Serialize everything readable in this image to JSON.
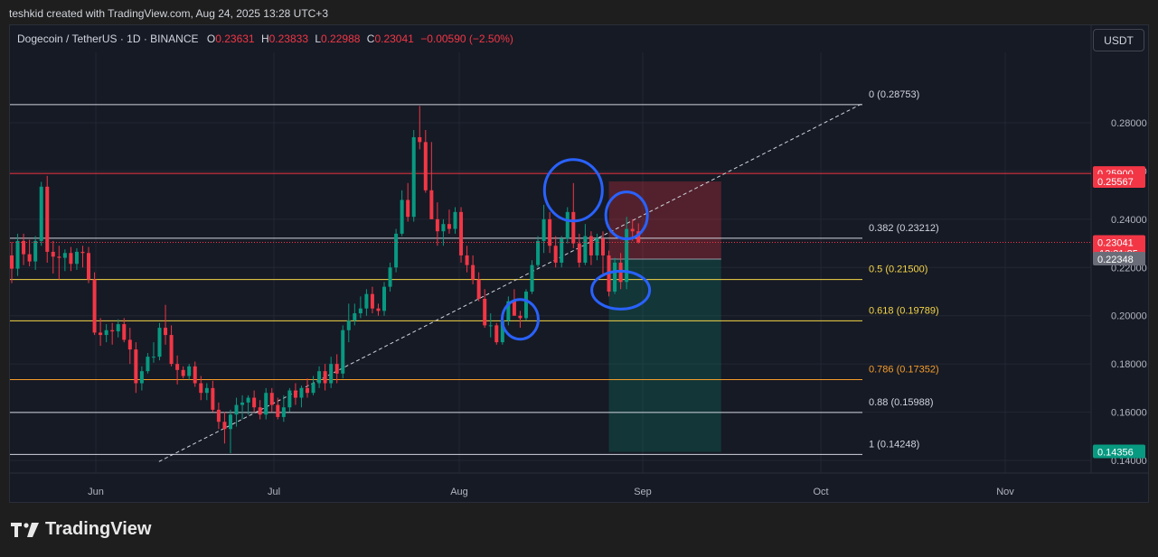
{
  "header": {
    "credit": "teshkid created with TradingView.com, Aug 24, 2025 13:28 UTC+3"
  },
  "legend": {
    "symbol": "Dogecoin / TetherUS · 1D · BINANCE",
    "o_label": "O",
    "o_value": "0.23631",
    "h_label": "H",
    "h_value": "0.23833",
    "l_label": "L",
    "l_value": "0.22988",
    "c_label": "C",
    "c_value": "0.23041",
    "change": "−0.00590 (−2.50%)"
  },
  "currency_button": "USDT",
  "brand": {
    "name": "TradingView"
  },
  "colors": {
    "up": "#089981",
    "down": "#f23645",
    "background": "#161a25",
    "annotation": "#2962ff"
  },
  "chart_data": {
    "type": "candlestick",
    "symbol": "Dogecoin / TetherUS",
    "interval": "1D",
    "exchange": "BINANCE",
    "x_ticks": [
      "Jun",
      "Jul",
      "Aug",
      "Sep",
      "Oct",
      "Nov"
    ],
    "y_ticks": [
      "0.28000",
      "0.26000",
      "0.24000",
      "0.22000",
      "0.20000",
      "0.18000",
      "0.16000",
      "0.14000"
    ],
    "ylim": [
      0.126,
      0.298
    ],
    "first_candle_date": "2025-05-19",
    "candles": [
      [
        0.225,
        0.2305,
        0.2135,
        0.2195
      ],
      [
        0.2195,
        0.234,
        0.2165,
        0.231
      ],
      [
        0.231,
        0.234,
        0.221,
        0.2255
      ],
      [
        0.2255,
        0.2315,
        0.2205,
        0.2225
      ],
      [
        0.2225,
        0.233,
        0.219,
        0.231
      ],
      [
        0.231,
        0.2555,
        0.229,
        0.2535
      ],
      [
        0.2535,
        0.258,
        0.222,
        0.2265
      ],
      [
        0.2265,
        0.231,
        0.2175,
        0.2245
      ],
      [
        0.2245,
        0.229,
        0.215,
        0.224
      ],
      [
        0.224,
        0.2275,
        0.2185,
        0.226
      ],
      [
        0.226,
        0.2285,
        0.2185,
        0.2215
      ],
      [
        0.2215,
        0.228,
        0.219,
        0.2265
      ],
      [
        0.2265,
        0.229,
        0.22,
        0.226
      ],
      [
        0.226,
        0.2285,
        0.2135,
        0.215
      ],
      [
        0.215,
        0.218,
        0.192,
        0.193
      ],
      [
        0.193,
        0.199,
        0.1875,
        0.192
      ],
      [
        0.192,
        0.1965,
        0.189,
        0.194
      ],
      [
        0.194,
        0.197,
        0.188,
        0.1935
      ],
      [
        0.1935,
        0.1985,
        0.191,
        0.1965
      ],
      [
        0.1965,
        0.199,
        0.189,
        0.19
      ],
      [
        0.19,
        0.195,
        0.18,
        0.186
      ],
      [
        0.186,
        0.189,
        0.168,
        0.172
      ],
      [
        0.172,
        0.179,
        0.169,
        0.177
      ],
      [
        0.177,
        0.1845,
        0.176,
        0.183
      ],
      [
        0.183,
        0.189,
        0.1805,
        0.183
      ],
      [
        0.183,
        0.197,
        0.1815,
        0.195
      ],
      [
        0.195,
        0.2045,
        0.188,
        0.192
      ],
      [
        0.192,
        0.196,
        0.179,
        0.18
      ],
      [
        0.18,
        0.1835,
        0.1715,
        0.1775
      ],
      [
        0.1775,
        0.179,
        0.174,
        0.175
      ],
      [
        0.175,
        0.18,
        0.1735,
        0.179
      ],
      [
        0.179,
        0.181,
        0.1705,
        0.172
      ],
      [
        0.172,
        0.175,
        0.165,
        0.168
      ],
      [
        0.168,
        0.172,
        0.165,
        0.17
      ],
      [
        0.17,
        0.173,
        0.16,
        0.161
      ],
      [
        0.161,
        0.164,
        0.153,
        0.156
      ],
      [
        0.156,
        0.16,
        0.147,
        0.153
      ],
      [
        0.153,
        0.161,
        0.143,
        0.159
      ],
      [
        0.159,
        0.166,
        0.154,
        0.163
      ],
      [
        0.163,
        0.167,
        0.157,
        0.164
      ],
      [
        0.164,
        0.167,
        0.159,
        0.166
      ],
      [
        0.166,
        0.169,
        0.16,
        0.162
      ],
      [
        0.162,
        0.165,
        0.157,
        0.159
      ],
      [
        0.159,
        0.17,
        0.157,
        0.168
      ],
      [
        0.168,
        0.17,
        0.16,
        0.163
      ],
      [
        0.163,
        0.166,
        0.157,
        0.158
      ],
      [
        0.158,
        0.167,
        0.156,
        0.162
      ],
      [
        0.162,
        0.17,
        0.16,
        0.169
      ],
      [
        0.169,
        0.172,
        0.163,
        0.166
      ],
      [
        0.166,
        0.171,
        0.162,
        0.17
      ],
      [
        0.17,
        0.174,
        0.166,
        0.168
      ],
      [
        0.168,
        0.175,
        0.167,
        0.172
      ],
      [
        0.172,
        0.179,
        0.17,
        0.177
      ],
      [
        0.177,
        0.18,
        0.169,
        0.172
      ],
      [
        0.172,
        0.183,
        0.17,
        0.18
      ],
      [
        0.18,
        0.184,
        0.172,
        0.176
      ],
      [
        0.176,
        0.196,
        0.174,
        0.194
      ],
      [
        0.194,
        0.205,
        0.189,
        0.198
      ],
      [
        0.198,
        0.205,
        0.196,
        0.201
      ],
      [
        0.201,
        0.208,
        0.199,
        0.203
      ],
      [
        0.203,
        0.211,
        0.2,
        0.209
      ],
      [
        0.209,
        0.212,
        0.201,
        0.203
      ],
      [
        0.203,
        0.205,
        0.2,
        0.202
      ],
      [
        0.202,
        0.214,
        0.2,
        0.212
      ],
      [
        0.212,
        0.222,
        0.21,
        0.22
      ],
      [
        0.22,
        0.236,
        0.218,
        0.234
      ],
      [
        0.234,
        0.252,
        0.233,
        0.248
      ],
      [
        0.248,
        0.255,
        0.239,
        0.241
      ],
      [
        0.241,
        0.277,
        0.239,
        0.274
      ],
      [
        0.274,
        0.287,
        0.269,
        0.272
      ],
      [
        0.272,
        0.277,
        0.251,
        0.252
      ],
      [
        0.252,
        0.272,
        0.241,
        0.24
      ],
      [
        0.24,
        0.247,
        0.229,
        0.235
      ],
      [
        0.235,
        0.24,
        0.229,
        0.238
      ],
      [
        0.238,
        0.244,
        0.234,
        0.236
      ],
      [
        0.236,
        0.245,
        0.234,
        0.243
      ],
      [
        0.243,
        0.245,
        0.222,
        0.225
      ],
      [
        0.225,
        0.229,
        0.218,
        0.221
      ],
      [
        0.221,
        0.225,
        0.213,
        0.215
      ],
      [
        0.215,
        0.218,
        0.206,
        0.207
      ],
      [
        0.207,
        0.211,
        0.195,
        0.196
      ],
      [
        0.196,
        0.201,
        0.191,
        0.196
      ],
      [
        0.196,
        0.197,
        0.188,
        0.189
      ],
      [
        0.189,
        0.199,
        0.188,
        0.198
      ],
      [
        0.198,
        0.208,
        0.196,
        0.206
      ],
      [
        0.206,
        0.211,
        0.2,
        0.2
      ],
      [
        0.2,
        0.202,
        0.195,
        0.199
      ],
      [
        0.199,
        0.211,
        0.198,
        0.21
      ],
      [
        0.21,
        0.223,
        0.209,
        0.221
      ],
      [
        0.221,
        0.233,
        0.22,
        0.231
      ],
      [
        0.231,
        0.246,
        0.226,
        0.24
      ],
      [
        0.24,
        0.243,
        0.226,
        0.229
      ],
      [
        0.229,
        0.233,
        0.22,
        0.222
      ],
      [
        0.222,
        0.233,
        0.22,
        0.232
      ],
      [
        0.232,
        0.245,
        0.23,
        0.243
      ],
      [
        0.243,
        0.255,
        0.228,
        0.23
      ],
      [
        0.23,
        0.234,
        0.22,
        0.222
      ],
      [
        0.222,
        0.238,
        0.221,
        0.233
      ],
      [
        0.233,
        0.235,
        0.221,
        0.225
      ],
      [
        0.225,
        0.234,
        0.223,
        0.232
      ],
      [
        0.232,
        0.235,
        0.217,
        0.225
      ],
      [
        0.225,
        0.227,
        0.208,
        0.21
      ],
      [
        0.21,
        0.224,
        0.209,
        0.222
      ],
      [
        0.222,
        0.226,
        0.211,
        0.214
      ],
      [
        0.214,
        0.241,
        0.211,
        0.236
      ],
      [
        0.236,
        0.24,
        0.231,
        0.235
      ],
      [
        0.235,
        0.2383,
        0.2299,
        0.2304
      ]
    ],
    "fibonacci": [
      {
        "label": "0 (0.28753)",
        "value": 0.28753,
        "color": "#d1d4dc"
      },
      {
        "label": "0.382 (0.23212)",
        "value": 0.23212,
        "color": "#d1d4dc"
      },
      {
        "label": "0.5 (0.21500)",
        "value": 0.215,
        "color": "#f5d547"
      },
      {
        "label": "0.618 (0.19789)",
        "value": 0.19789,
        "color": "#f5d547"
      },
      {
        "label": "0.786 (0.17352)",
        "value": 0.17352,
        "color": "#f59c2a"
      },
      {
        "label": "0.88 (0.15988)",
        "value": 0.15988,
        "color": "#d1d4dc"
      },
      {
        "label": "1 (0.14248)",
        "value": 0.14248,
        "color": "#d1d4dc"
      }
    ],
    "horizontal_line": 0.259,
    "trendline": {
      "from": [
        3,
        0.1395
      ],
      "to": [
        22,
        0.288
      ]
    },
    "position": {
      "entry": 0.22348,
      "stop": 0.25567,
      "target": 0.14356,
      "start_index": 101,
      "end_index": 120
    },
    "price_labels": [
      {
        "text": "0.25900",
        "value": 0.259,
        "bg": "#f23645"
      },
      {
        "text": "0.25567",
        "value": 0.25567,
        "bg": "#f23645"
      },
      {
        "text": "0.23041",
        "value": 0.23041,
        "bg": "#f23645",
        "sub": "13:31:25"
      },
      {
        "text": "0.22348",
        "value": 0.22348,
        "bg": "#6a6d78"
      },
      {
        "text": "0.14356",
        "value": 0.14356,
        "bg": "#089981"
      }
    ],
    "annotations": [
      {
        "type": "ellipse",
        "index": 86,
        "value": 0.1985
      },
      {
        "type": "ellipse",
        "index": 95,
        "value": 0.252
      },
      {
        "type": "ellipse",
        "index": 104,
        "value": 0.2416
      },
      {
        "type": "ellipse",
        "index": 103,
        "value": 0.2106
      }
    ]
  }
}
